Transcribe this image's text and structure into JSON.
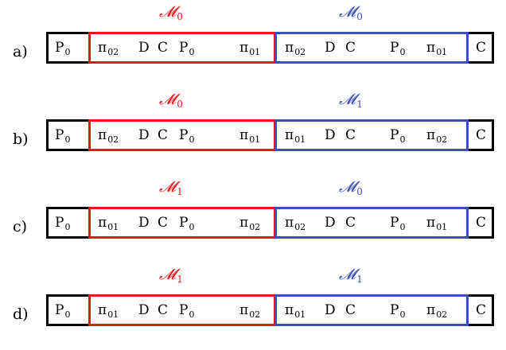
{
  "rows": [
    {
      "label": "a)",
      "left_model": {
        "sym": "𝓜",
        "sub": "0"
      },
      "right_model": {
        "sym": "𝓜",
        "sub": "0"
      },
      "outer_left": {
        "sym": "P",
        "sub": "0"
      },
      "left_tokens": [
        {
          "sym": "π",
          "sub": "02"
        },
        {
          "sym": "D",
          "sub": ""
        },
        {
          "sym": "C",
          "sub": ""
        },
        {
          "sym": "P",
          "sub": "0"
        },
        {
          "sym": "π",
          "sub": "01"
        }
      ],
      "right_tokens": [
        {
          "sym": "π",
          "sub": "02"
        },
        {
          "sym": "D",
          "sub": ""
        },
        {
          "sym": "C",
          "sub": ""
        },
        {
          "sym": "P",
          "sub": "0"
        },
        {
          "sym": "π",
          "sub": "01"
        }
      ],
      "outer_right": {
        "sym": "C",
        "sub": ""
      }
    },
    {
      "label": "b)",
      "left_model": {
        "sym": "𝓜",
        "sub": "0"
      },
      "right_model": {
        "sym": "𝓜",
        "sub": "1"
      },
      "outer_left": {
        "sym": "P",
        "sub": "0"
      },
      "left_tokens": [
        {
          "sym": "π",
          "sub": "02"
        },
        {
          "sym": "D",
          "sub": ""
        },
        {
          "sym": "C",
          "sub": ""
        },
        {
          "sym": "P",
          "sub": "0"
        },
        {
          "sym": "π",
          "sub": "01"
        }
      ],
      "right_tokens": [
        {
          "sym": "π",
          "sub": "01"
        },
        {
          "sym": "D",
          "sub": ""
        },
        {
          "sym": "C",
          "sub": ""
        },
        {
          "sym": "P",
          "sub": "0"
        },
        {
          "sym": "π",
          "sub": "02"
        }
      ],
      "outer_right": {
        "sym": "C",
        "sub": ""
      }
    },
    {
      "label": "c)",
      "left_model": {
        "sym": "𝓜",
        "sub": "1"
      },
      "right_model": {
        "sym": "𝓜",
        "sub": "0"
      },
      "outer_left": {
        "sym": "P",
        "sub": "0"
      },
      "left_tokens": [
        {
          "sym": "π",
          "sub": "01"
        },
        {
          "sym": "D",
          "sub": ""
        },
        {
          "sym": "C",
          "sub": ""
        },
        {
          "sym": "P",
          "sub": "0"
        },
        {
          "sym": "π",
          "sub": "02"
        }
      ],
      "right_tokens": [
        {
          "sym": "π",
          "sub": "02"
        },
        {
          "sym": "D",
          "sub": ""
        },
        {
          "sym": "C",
          "sub": ""
        },
        {
          "sym": "P",
          "sub": "0"
        },
        {
          "sym": "π",
          "sub": "01"
        }
      ],
      "outer_right": {
        "sym": "C",
        "sub": ""
      }
    },
    {
      "label": "d)",
      "left_model": {
        "sym": "𝓜",
        "sub": "1"
      },
      "right_model": {
        "sym": "𝓜",
        "sub": "1"
      },
      "outer_left": {
        "sym": "P",
        "sub": "0"
      },
      "left_tokens": [
        {
          "sym": "π",
          "sub": "01"
        },
        {
          "sym": "D",
          "sub": ""
        },
        {
          "sym": "C",
          "sub": ""
        },
        {
          "sym": "P",
          "sub": "0"
        },
        {
          "sym": "π",
          "sub": "02"
        }
      ],
      "right_tokens": [
        {
          "sym": "π",
          "sub": "01"
        },
        {
          "sym": "D",
          "sub": ""
        },
        {
          "sym": "C",
          "sub": ""
        },
        {
          "sym": "P",
          "sub": "0"
        },
        {
          "sym": "π",
          "sub": "02"
        }
      ],
      "outer_right": {
        "sym": "C",
        "sub": ""
      }
    }
  ],
  "colors": {
    "left_model": "#e8161b",
    "right_model": "#3a50b8",
    "outline": "#000000"
  }
}
